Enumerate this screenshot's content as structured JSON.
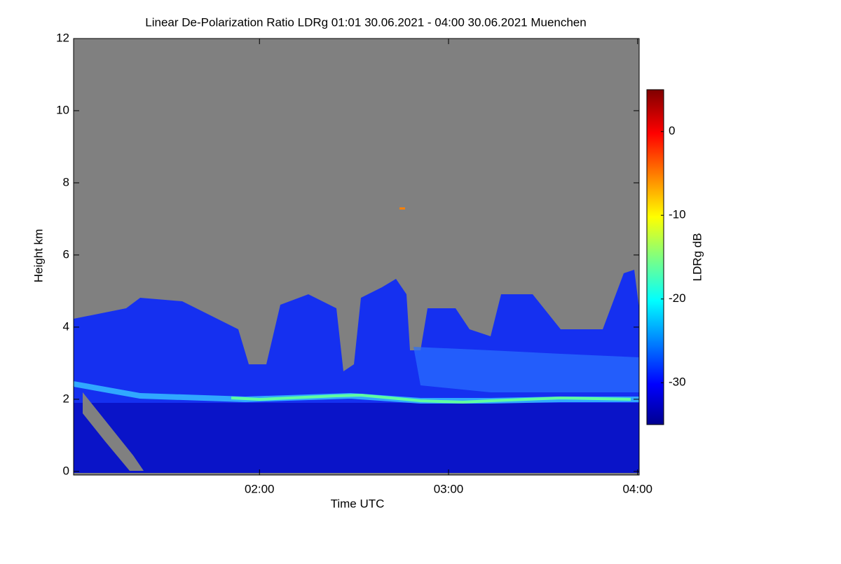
{
  "chart_data": {
    "type": "heatmap",
    "title": "Linear De-Polarization Ratio LDRg   01:01 30.06.2021 - 04:00 30.06.2021 Muenchen",
    "x_label": "Time UTC",
    "y_label": "Height km",
    "colorbar_label": "LDRg dB",
    "xlim": [
      61,
      240.5
    ],
    "xticks": [
      {
        "value": 120,
        "label": "02:00"
      },
      {
        "value": 180,
        "label": "03:00"
      },
      {
        "value": 240,
        "label": "04:00"
      }
    ],
    "ylim": [
      -0.1,
      12
    ],
    "yticks": [
      0,
      2,
      4,
      6,
      8,
      10,
      12
    ],
    "zlim": [
      -35,
      5
    ],
    "zticks": [
      0,
      -10,
      -20,
      -30
    ]
  }
}
